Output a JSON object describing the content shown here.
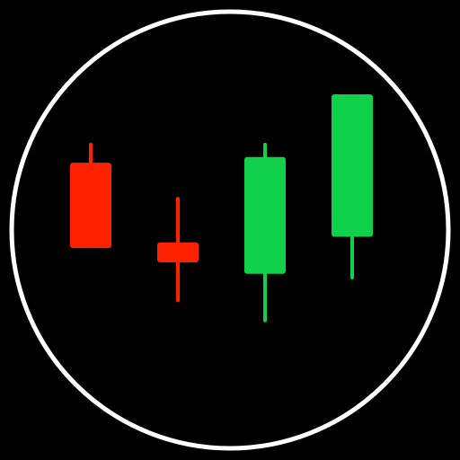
{
  "colors": {
    "background": "#000000",
    "ring": "#ffffff",
    "bearish": "#ff2200",
    "bullish": "#0fd24a"
  },
  "icon": {
    "name": "candlestick-chart-icon",
    "candles": [
      {
        "direction": "bearish",
        "high": 0.83,
        "open": 0.76,
        "close": 0.46,
        "low": 0.46
      },
      {
        "direction": "bearish",
        "high": 0.64,
        "open": 0.48,
        "close": 0.41,
        "low": 0.27
      },
      {
        "direction": "bullish",
        "high": 0.83,
        "open": 0.37,
        "close": 0.78,
        "low": 0.2
      },
      {
        "direction": "bullish",
        "high": 1.0,
        "open": 0.5,
        "close": 1.0,
        "low": 0.35
      }
    ]
  }
}
